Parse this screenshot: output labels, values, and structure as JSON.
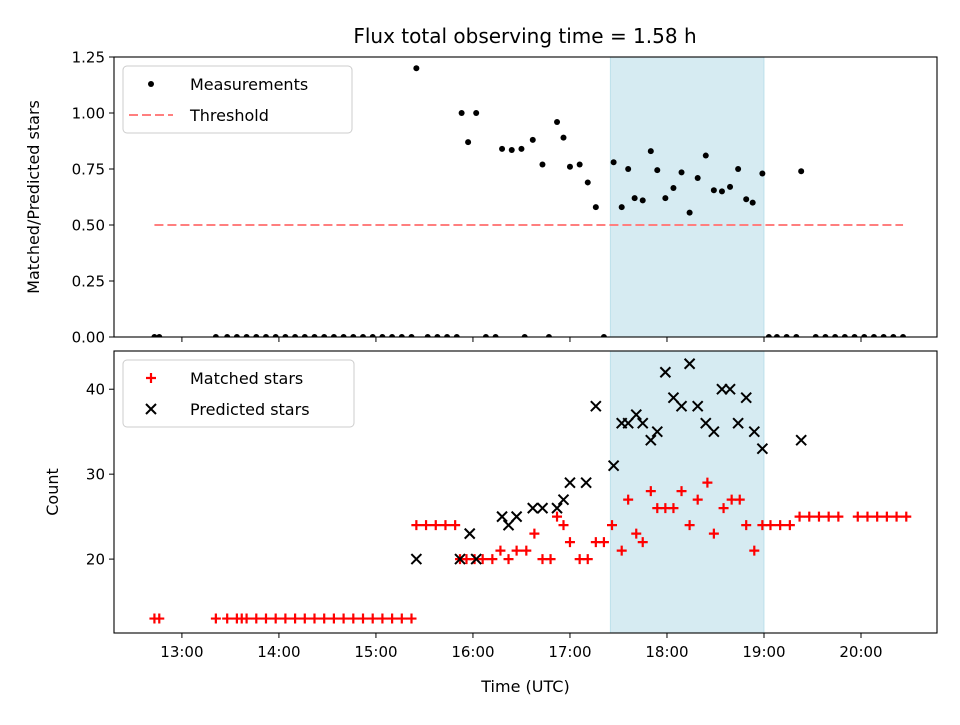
{
  "chart_data": [
    {
      "type": "scatter",
      "title": "Flux total observing time = 1.58 h",
      "xlabel": "",
      "ylabel": "Matched/Predicted stars",
      "ylim": [
        0,
        1.25
      ],
      "xlim": [
        "12:18",
        "20:47"
      ],
      "yticks": [
        "0.00",
        "0.25",
        "0.50",
        "0.75",
        "1.00",
        "1.25"
      ],
      "shaded_span": {
        "start": "17:25",
        "end": "19:00",
        "color": "#add8e6"
      },
      "legend_placement": "top-left",
      "series": [
        {
          "name": "Measurements",
          "marker": "dot",
          "color": "#000000",
          "points": [
            [
              "12:43",
              0
            ],
            [
              "12:46",
              0
            ],
            [
              "13:21",
              0
            ],
            [
              "13:28",
              0
            ],
            [
              "13:34",
              0
            ],
            [
              "13:40",
              0
            ],
            [
              "13:46",
              0
            ],
            [
              "13:52",
              0
            ],
            [
              "13:58",
              0
            ],
            [
              "14:04",
              0
            ],
            [
              "14:10",
              0
            ],
            [
              "14:16",
              0
            ],
            [
              "14:22",
              0
            ],
            [
              "14:28",
              0
            ],
            [
              "14:34",
              0
            ],
            [
              "14:40",
              0
            ],
            [
              "14:46",
              0
            ],
            [
              "14:52",
              0
            ],
            [
              "14:58",
              0
            ],
            [
              "15:04",
              0
            ],
            [
              "15:10",
              0
            ],
            [
              "15:16",
              0
            ],
            [
              "15:22",
              0
            ],
            [
              "15:25",
              1.2
            ],
            [
              "15:32",
              0
            ],
            [
              "15:38",
              0
            ],
            [
              "15:44",
              0
            ],
            [
              "15:50",
              0
            ],
            [
              "15:53",
              1.0
            ],
            [
              "15:57",
              0.87
            ],
            [
              "16:02",
              1.0
            ],
            [
              "16:08",
              0
            ],
            [
              "16:14",
              0
            ],
            [
              "16:18",
              0.84
            ],
            [
              "16:24",
              0.835
            ],
            [
              "16:30",
              0.84
            ],
            [
              "16:32",
              0
            ],
            [
              "16:37",
              0.88
            ],
            [
              "16:43",
              0.77
            ],
            [
              "16:47",
              0
            ],
            [
              "16:52",
              0.96
            ],
            [
              "16:56",
              0.89
            ],
            [
              "17:00",
              0.76
            ],
            [
              "17:06",
              0.77
            ],
            [
              "17:11",
              0.69
            ],
            [
              "17:16",
              0.58
            ],
            [
              "17:21",
              0
            ],
            [
              "17:27",
              0.78
            ],
            [
              "17:32",
              0.58
            ],
            [
              "17:36",
              0.75
            ],
            [
              "17:40",
              0.62
            ],
            [
              "17:45",
              0.61
            ],
            [
              "17:50",
              0.83
            ],
            [
              "17:54",
              0.745
            ],
            [
              "17:59",
              0.62
            ],
            [
              "18:04",
              0.665
            ],
            [
              "18:09",
              0.735
            ],
            [
              "18:14",
              0.555
            ],
            [
              "18:19",
              0.71
            ],
            [
              "18:24",
              0.81
            ],
            [
              "18:29",
              0.655
            ],
            [
              "18:34",
              0.65
            ],
            [
              "18:39",
              0.67
            ],
            [
              "18:44",
              0.75
            ],
            [
              "18:49",
              0.615
            ],
            [
              "18:53",
              0.6
            ],
            [
              "18:59",
              0.73
            ],
            [
              "19:03",
              0
            ],
            [
              "19:08",
              0
            ],
            [
              "19:14",
              0
            ],
            [
              "19:20",
              0
            ],
            [
              "19:23",
              0.74
            ],
            [
              "19:32",
              0
            ],
            [
              "19:38",
              0
            ],
            [
              "19:44",
              0
            ],
            [
              "19:50",
              0
            ],
            [
              "19:56",
              0
            ],
            [
              "20:02",
              0
            ],
            [
              "20:08",
              0
            ],
            [
              "20:14",
              0
            ],
            [
              "20:20",
              0
            ],
            [
              "20:26",
              0
            ]
          ]
        },
        {
          "name": "Threshold",
          "marker": "dashed-line",
          "color": "#ff7f7f",
          "points": [
            [
              "12:43",
              0.5
            ],
            [
              "20:26",
              0.5
            ]
          ]
        }
      ]
    },
    {
      "type": "scatter",
      "title": "",
      "xlabel": "Time (UTC)",
      "ylabel": "Count",
      "ylim": [
        11.3,
        44.5
      ],
      "xlim": [
        "12:18",
        "20:47"
      ],
      "xticks": [
        "13:00",
        "14:00",
        "15:00",
        "16:00",
        "17:00",
        "18:00",
        "19:00",
        "20:00"
      ],
      "yticks": [
        "20",
        "30",
        "40"
      ],
      "shaded_span": {
        "start": "17:25",
        "end": "19:00",
        "color": "#add8e6"
      },
      "legend_placement": "top-left",
      "series": [
        {
          "name": "Matched stars",
          "marker": "plus",
          "color": "#ff0000",
          "points": [
            [
              "12:43",
              13
            ],
            [
              "12:46",
              13
            ],
            [
              "13:21",
              13
            ],
            [
              "13:28",
              13
            ],
            [
              "13:34",
              13
            ],
            [
              "13:37",
              13
            ],
            [
              "13:40",
              13
            ],
            [
              "13:46",
              13
            ],
            [
              "13:52",
              13
            ],
            [
              "13:58",
              13
            ],
            [
              "14:04",
              13
            ],
            [
              "14:10",
              13
            ],
            [
              "14:16",
              13
            ],
            [
              "14:22",
              13
            ],
            [
              "14:28",
              13
            ],
            [
              "14:34",
              13
            ],
            [
              "14:40",
              13
            ],
            [
              "14:46",
              13
            ],
            [
              "14:52",
              13
            ],
            [
              "14:58",
              13
            ],
            [
              "15:04",
              13
            ],
            [
              "15:10",
              13
            ],
            [
              "15:16",
              13
            ],
            [
              "15:22",
              13
            ],
            [
              "15:25",
              24
            ],
            [
              "15:31",
              24
            ],
            [
              "15:37",
              24
            ],
            [
              "15:43",
              24
            ],
            [
              "15:49",
              24
            ],
            [
              "15:52",
              20
            ],
            [
              "15:56",
              20
            ],
            [
              "16:01",
              20
            ],
            [
              "16:06",
              20
            ],
            [
              "16:12",
              20
            ],
            [
              "16:17",
              21
            ],
            [
              "16:22",
              20
            ],
            [
              "16:27",
              21
            ],
            [
              "16:33",
              21
            ],
            [
              "16:38",
              23
            ],
            [
              "16:43",
              20
            ],
            [
              "16:48",
              20
            ],
            [
              "16:52",
              25
            ],
            [
              "16:56",
              24
            ],
            [
              "17:00",
              22
            ],
            [
              "17:06",
              20
            ],
            [
              "17:11",
              20
            ],
            [
              "17:16",
              22
            ],
            [
              "17:21",
              22
            ],
            [
              "17:26",
              24
            ],
            [
              "17:32",
              21
            ],
            [
              "17:36",
              27
            ],
            [
              "17:41",
              23
            ],
            [
              "17:45",
              22
            ],
            [
              "17:50",
              28
            ],
            [
              "17:54",
              26
            ],
            [
              "17:59",
              26
            ],
            [
              "18:04",
              26
            ],
            [
              "18:09",
              28
            ],
            [
              "18:14",
              24
            ],
            [
              "18:19",
              27
            ],
            [
              "18:25",
              29
            ],
            [
              "18:29",
              23
            ],
            [
              "18:35",
              26
            ],
            [
              "18:40",
              27
            ],
            [
              "18:45",
              27
            ],
            [
              "18:49",
              24
            ],
            [
              "18:54",
              21
            ],
            [
              "18:59",
              24
            ],
            [
              "19:04",
              24
            ],
            [
              "19:10",
              24
            ],
            [
              "19:16",
              24
            ],
            [
              "19:22",
              25
            ],
            [
              "19:28",
              25
            ],
            [
              "19:34",
              25
            ],
            [
              "19:40",
              25
            ],
            [
              "19:46",
              25
            ],
            [
              "19:58",
              25
            ],
            [
              "20:04",
              25
            ],
            [
              "20:10",
              25
            ],
            [
              "20:16",
              25
            ],
            [
              "20:22",
              25
            ],
            [
              "20:28",
              25
            ]
          ]
        },
        {
          "name": "Predicted stars",
          "marker": "x",
          "color": "#000000",
          "points": [
            [
              "15:25",
              20
            ],
            [
              "15:52",
              20
            ],
            [
              "15:58",
              23
            ],
            [
              "16:02",
              20
            ],
            [
              "16:18",
              25
            ],
            [
              "16:22",
              24
            ],
            [
              "16:27",
              25
            ],
            [
              "16:37",
              26
            ],
            [
              "16:43",
              26
            ],
            [
              "16:52",
              26
            ],
            [
              "16:56",
              27
            ],
            [
              "17:00",
              29
            ],
            [
              "17:10",
              29
            ],
            [
              "17:16",
              38
            ],
            [
              "17:27",
              31
            ],
            [
              "17:32",
              36
            ],
            [
              "17:36",
              36
            ],
            [
              "17:41",
              37
            ],
            [
              "17:45",
              36
            ],
            [
              "17:50",
              34
            ],
            [
              "17:54",
              35
            ],
            [
              "17:59",
              42
            ],
            [
              "18:04",
              39
            ],
            [
              "18:09",
              38
            ],
            [
              "18:14",
              43
            ],
            [
              "18:19",
              38
            ],
            [
              "18:24",
              36
            ],
            [
              "18:29",
              35
            ],
            [
              "18:34",
              40
            ],
            [
              "18:39",
              40
            ],
            [
              "18:44",
              36
            ],
            [
              "18:49",
              39
            ],
            [
              "18:54",
              35
            ],
            [
              "18:59",
              33
            ],
            [
              "19:23",
              34
            ]
          ]
        }
      ]
    }
  ]
}
